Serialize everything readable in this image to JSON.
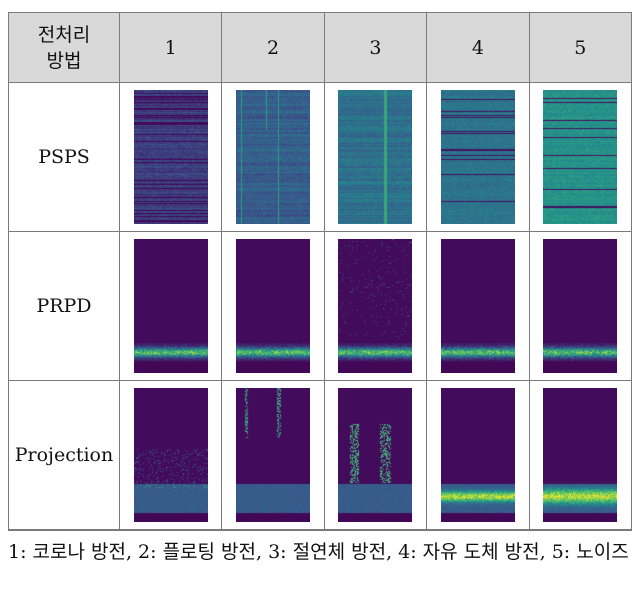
{
  "header": {
    "corner_line1": "전처리",
    "corner_line2": "방법",
    "columns": [
      "1",
      "2",
      "3",
      "4",
      "5"
    ]
  },
  "rows": [
    {
      "label": "PSPS"
    },
    {
      "label": "PRPD"
    },
    {
      "label": "Projection"
    }
  ],
  "colors": {
    "viridis_dark": "#440154",
    "viridis_blue": "#31688e",
    "viridis_teal": "#21918c",
    "viridis_green": "#35b779",
    "viridis_yellow": "#fde725"
  },
  "caption": "1: 코로나 방전, 2: 플로팅 방전, 3: 절연체 방전, 4: 자유 도체 방전, 5: 노이즈"
}
